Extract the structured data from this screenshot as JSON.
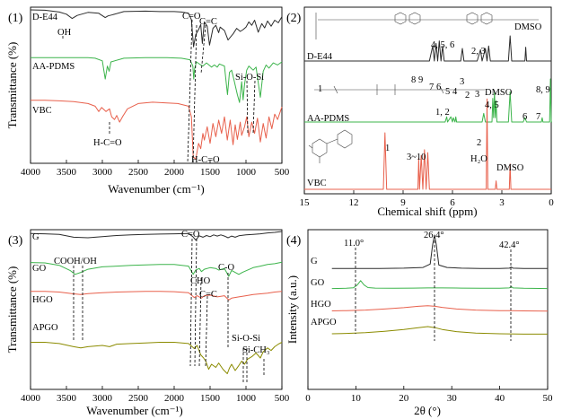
{
  "chart_data": [
    {
      "panel": "(1)",
      "type": "line",
      "xlabel": "Wavenumber (cm⁻¹)",
      "ylabel": "Transmittance (%)",
      "xlim": [
        4000,
        500
      ],
      "xticks": [
        4000,
        3500,
        3000,
        2500,
        2000,
        1500,
        1000,
        500
      ],
      "series": [
        {
          "name": "D-E44",
          "color": "#2b2b2b",
          "x": [
            4000,
            3800,
            3600,
            3500,
            3420,
            3350,
            3200,
            3050,
            2960,
            2920,
            2870,
            2700,
            2400,
            2200,
            2000,
            1900,
            1800,
            1760,
            1730,
            1700,
            1660,
            1630,
            1607,
            1580,
            1540,
            1508,
            1460,
            1420,
            1380,
            1360,
            1300,
            1250,
            1180,
            1130,
            1080,
            1040,
            1000,
            960,
            920,
            880,
            830,
            780,
            740,
            700,
            650,
            600,
            550,
            500
          ],
          "y": [
            0.98,
            0.97,
            0.93,
            0.88,
            0.78,
            0.85,
            0.92,
            0.9,
            0.8,
            0.84,
            0.86,
            0.94,
            0.95,
            0.94,
            0.94,
            0.93,
            0.9,
            0.75,
            0.12,
            0.4,
            0.52,
            0.64,
            0.2,
            0.7,
            0.6,
            0.16,
            0.55,
            0.62,
            0.45,
            0.58,
            0.5,
            0.28,
            0.42,
            0.55,
            0.48,
            0.52,
            0.58,
            0.7,
            0.62,
            0.74,
            0.46,
            0.66,
            0.56,
            0.72,
            0.6,
            0.74,
            0.68,
            0.82
          ]
        },
        {
          "name": "AA-PDMS",
          "color": "#3cb44b",
          "x": [
            4000,
            3600,
            3200,
            3100,
            3000,
            2960,
            2930,
            2905,
            2880,
            2700,
            2400,
            2100,
            1900,
            1780,
            1740,
            1727,
            1715,
            1690,
            1630,
            1600,
            1550,
            1480,
            1440,
            1400,
            1370,
            1300,
            1258,
            1230,
            1200,
            1170,
            1120,
            1090,
            1060,
            1040,
            1020,
            990,
            960,
            900,
            860,
            800,
            760,
            720,
            680,
            620,
            560,
            500
          ],
          "y": [
            0.96,
            0.96,
            0.96,
            0.95,
            0.9,
            0.55,
            0.8,
            0.7,
            0.88,
            0.95,
            0.96,
            0.96,
            0.95,
            0.92,
            0.8,
            0.55,
            0.75,
            0.88,
            0.82,
            0.8,
            0.86,
            0.78,
            0.82,
            0.78,
            0.84,
            0.8,
            0.25,
            0.68,
            0.72,
            0.55,
            0.25,
            0.1,
            0.5,
            0.15,
            0.45,
            0.72,
            0.8,
            0.72,
            0.78,
            0.2,
            0.7,
            0.82,
            0.76,
            0.86,
            0.82,
            0.88
          ]
        },
        {
          "name": "VBC",
          "color": "#e8604c",
          "x": [
            4000,
            3800,
            3600,
            3400,
            3200,
            3100,
            3050,
            3010,
            2950,
            2900,
            2870,
            2830,
            2800,
            2760,
            2720,
            2650,
            2500,
            2300,
            2100,
            1950,
            1800,
            1760,
            1735,
            1700,
            1660,
            1630,
            1600,
            1580,
            1540,
            1500,
            1460,
            1420,
            1380,
            1340,
            1300,
            1260,
            1220,
            1180,
            1150,
            1120,
            1080,
            1060,
            1020,
            990,
            960,
            920,
            880,
            840,
            800,
            760,
            720,
            680,
            640,
            600,
            560,
            500
          ],
          "y": [
            0.95,
            0.95,
            0.94,
            0.93,
            0.9,
            0.86,
            0.78,
            0.84,
            0.78,
            0.82,
            0.7,
            0.66,
            0.72,
            0.62,
            0.7,
            0.82,
            0.9,
            0.92,
            0.91,
            0.9,
            0.86,
            0.7,
            0.1,
            0.06,
            0.3,
            0.22,
            0.45,
            0.35,
            0.55,
            0.3,
            0.6,
            0.4,
            0.65,
            0.45,
            0.7,
            0.35,
            0.65,
            0.28,
            0.58,
            0.36,
            0.62,
            0.42,
            0.55,
            0.7,
            0.4,
            0.62,
            0.45,
            0.68,
            0.32,
            0.6,
            0.38,
            0.7,
            0.52,
            0.74,
            0.66,
            0.85
          ]
        }
      ],
      "annotations": [
        "OH",
        "C=O",
        "C=C",
        "Si-O-Si",
        "H-C=O",
        "H-C=O"
      ]
    },
    {
      "panel": "(2)",
      "type": "line",
      "xlabel": "Chemical shift (ppm)",
      "xlim": [
        15,
        0
      ],
      "xticks": [
        15,
        12,
        9,
        6,
        3,
        0
      ],
      "series": [
        {
          "name": "D-E44",
          "color": "#2b2b2b",
          "x": [
            15,
            7.4,
            7.2,
            7.1,
            7.0,
            6.9,
            6.8,
            6.7,
            6.6,
            6.5,
            5.5,
            5.4,
            5.3,
            4.5,
            4.3,
            4.2,
            4.0,
            3.9,
            3.8,
            3.7,
            3.6,
            2.6,
            2.5,
            2.4,
            1.6,
            1.55,
            1.5,
            0
          ],
          "y": [
            0,
            0,
            0.6,
            0,
            0.7,
            0,
            0.8,
            0,
            0.6,
            0,
            0,
            0.5,
            0,
            0,
            0.45,
            0,
            0.5,
            0,
            0.6,
            0,
            0,
            0,
            1.0,
            0,
            0,
            0.55,
            0,
            0
          ]
        },
        {
          "name": "AA-PDMS",
          "color": "#3cb44b",
          "x": [
            15,
            6.45,
            6.35,
            6.3,
            6.1,
            6.0,
            5.95,
            5.85,
            5.8,
            5.75,
            4.2,
            4.1,
            4.0,
            3.95,
            3.6,
            3.55,
            3.5,
            3.45,
            3.4,
            3.35,
            3.3,
            2.6,
            2.5,
            2.4,
            1.7,
            1.6,
            1.5,
            0.6,
            0.55,
            0.5,
            0.1,
            0.05,
            0,
            -0.05
          ],
          "y": [
            0,
            0,
            0.12,
            0,
            0.12,
            0,
            0.1,
            0,
            0.12,
            0,
            0,
            0.2,
            0,
            0,
            0,
            0.55,
            0.1,
            0.7,
            0.1,
            0.5,
            0,
            0,
            0.7,
            0,
            0,
            0.1,
            0,
            0,
            0.1,
            0,
            0,
            1.0,
            0,
            0
          ]
        },
        {
          "name": "VBC",
          "color": "#e8604c",
          "x": [
            15,
            10.2,
            10.1,
            10.0,
            8.1,
            8.05,
            8.0,
            7.9,
            7.8,
            7.7,
            7.6,
            7.5,
            7.4,
            7.3,
            3.95,
            3.9,
            3.85,
            3.4,
            3.35,
            3.3,
            2.55,
            2.5,
            2.45,
            0
          ],
          "y": [
            0,
            0,
            1.0,
            0,
            0,
            0.55,
            0,
            0.6,
            0,
            0.7,
            0,
            0.65,
            0,
            0,
            0,
            1.6,
            0,
            0,
            0.15,
            0,
            0,
            0.45,
            0,
            0
          ]
        }
      ],
      "annotations": [
        "DMSO",
        "DMSO",
        "DMSO",
        "H₂O",
        "4, 5, 6",
        "2, 3",
        "1, 2",
        "3",
        "4, 5",
        "6",
        "7",
        "8, 9",
        "2",
        "3~10",
        "1",
        "9",
        "8",
        "7",
        "6",
        "5",
        "4",
        "3",
        "2",
        "1"
      ]
    },
    {
      "panel": "(3)",
      "type": "line",
      "xlabel": "Wavenumber (cm⁻¹)",
      "ylabel": "Transmittance (%)",
      "xlim": [
        4000,
        500
      ],
      "xticks": [
        4000,
        3500,
        3000,
        2500,
        2000,
        1500,
        1000,
        500
      ],
      "series": [
        {
          "name": "G",
          "color": "#2b2b2b",
          "x": [
            4000,
            3800,
            3600,
            3400,
            3200,
            3000,
            2800,
            2600,
            2400,
            2200,
            2000,
            1800,
            1740,
            1700,
            1650,
            1600,
            1550,
            1500,
            1450,
            1400,
            1350,
            1300,
            1250,
            1200,
            1150,
            1100,
            1000,
            900,
            800,
            700,
            600,
            500
          ],
          "y": [
            0.93,
            0.92,
            0.9,
            0.8,
            0.78,
            0.82,
            0.86,
            0.88,
            0.9,
            0.91,
            0.92,
            0.93,
            0.82,
            0.7,
            0.85,
            0.8,
            0.86,
            0.82,
            0.88,
            0.84,
            0.88,
            0.84,
            0.78,
            0.84,
            0.8,
            0.85,
            0.88,
            0.9,
            0.92,
            0.95,
            0.97,
            1.0
          ]
        },
        {
          "name": "GO",
          "color": "#3cb44b",
          "x": [
            4000,
            3800,
            3600,
            3450,
            3380,
            3300,
            3200,
            3000,
            2800,
            2600,
            2400,
            2200,
            2000,
            1800,
            1735,
            1700,
            1650,
            1620,
            1580,
            1500,
            1420,
            1380,
            1300,
            1240,
            1200,
            1100,
            1050,
            1000,
            900,
            800,
            700,
            600,
            500
          ],
          "y": [
            0.85,
            0.84,
            0.78,
            0.65,
            0.55,
            0.6,
            0.68,
            0.74,
            0.76,
            0.78,
            0.79,
            0.8,
            0.8,
            0.76,
            0.55,
            0.66,
            0.7,
            0.62,
            0.68,
            0.72,
            0.7,
            0.66,
            0.7,
            0.5,
            0.65,
            0.55,
            0.6,
            0.64,
            0.72,
            0.76,
            0.8,
            0.82,
            0.86
          ]
        },
        {
          "name": "HGO",
          "color": "#e8604c",
          "x": [
            4000,
            3800,
            3600,
            3400,
            3300,
            3200,
            3000,
            2800,
            2600,
            2400,
            2200,
            2000,
            1800,
            1720,
            1680,
            1620,
            1580,
            1500,
            1400,
            1300,
            1240,
            1200,
            1100,
            1000,
            900,
            800,
            700,
            600,
            500
          ],
          "y": [
            0.8,
            0.8,
            0.78,
            0.72,
            0.7,
            0.73,
            0.76,
            0.78,
            0.79,
            0.8,
            0.8,
            0.79,
            0.76,
            0.6,
            0.66,
            0.58,
            0.66,
            0.68,
            0.62,
            0.66,
            0.52,
            0.58,
            0.62,
            0.66,
            0.7,
            0.72,
            0.74,
            0.78,
            0.8
          ]
        },
        {
          "name": "APGO",
          "color": "#8b8b00",
          "x": [
            4000,
            3800,
            3600,
            3400,
            3300,
            3200,
            3000,
            2900,
            2800,
            2600,
            2400,
            2200,
            2000,
            1800,
            1720,
            1680,
            1630,
            1590,
            1560,
            1520,
            1480,
            1420,
            1380,
            1320,
            1260,
            1230,
            1200,
            1150,
            1100,
            1060,
            1020,
            980,
            920,
            860,
            800,
            760,
            700,
            650,
            600,
            550,
            500
          ],
          "y": [
            0.55,
            0.55,
            0.53,
            0.48,
            0.46,
            0.48,
            0.5,
            0.48,
            0.52,
            0.53,
            0.54,
            0.55,
            0.55,
            0.53,
            0.45,
            0.5,
            0.35,
            0.3,
            0.25,
            0.12,
            0.2,
            0.15,
            0.22,
            0.12,
            0.05,
            0.14,
            0.2,
            0.1,
            0.18,
            0.25,
            0.2,
            0.28,
            0.32,
            0.38,
            0.3,
            0.4,
            0.46,
            0.42,
            0.48,
            0.52,
            0.55
          ]
        }
      ],
      "annotations": [
        "COOH/OH",
        "C=O",
        "CHO",
        "C=C",
        "C-O",
        "Si-O-Si",
        "Si-CH₃"
      ]
    },
    {
      "panel": "(4)",
      "type": "line",
      "xlabel": "2θ (°)",
      "ylabel": "Intensity (a.u.)",
      "xlim": [
        0,
        50
      ],
      "xticks": [
        0,
        10,
        20,
        30,
        40,
        50
      ],
      "series": [
        {
          "name": "G",
          "color": "#2b2b2b",
          "x": [
            5,
            10,
            15,
            20,
            24,
            25.5,
            26,
            26.4,
            26.8,
            27.3,
            29,
            32,
            36,
            40,
            42,
            42.4,
            42.8,
            45,
            50
          ],
          "y": [
            0.02,
            0.02,
            0.02,
            0.03,
            0.05,
            0.15,
            0.7,
            1.0,
            0.7,
            0.12,
            0.05,
            0.03,
            0.02,
            0.02,
            0.03,
            0.06,
            0.03,
            0.02,
            0.02
          ]
        },
        {
          "name": "GO",
          "color": "#3cb44b",
          "x": [
            5,
            8,
            9.5,
            10.3,
            11,
            11.7,
            12.5,
            14,
            18,
            22,
            25,
            28,
            32,
            36,
            40,
            42,
            42.4,
            42.8,
            45,
            50
          ],
          "y": [
            0.02,
            0.03,
            0.06,
            0.2,
            0.42,
            0.2,
            0.07,
            0.04,
            0.03,
            0.04,
            0.05,
            0.05,
            0.04,
            0.03,
            0.03,
            0.05,
            0.12,
            0.05,
            0.03,
            0.02
          ]
        },
        {
          "name": "HGO",
          "color": "#e8604c",
          "x": [
            5,
            8,
            12,
            16,
            20,
            23,
            25,
            26.5,
            28,
            31,
            35,
            40,
            42.4,
            45,
            50
          ],
          "y": [
            0.05,
            0.06,
            0.08,
            0.12,
            0.17,
            0.22,
            0.24,
            0.22,
            0.18,
            0.12,
            0.08,
            0.06,
            0.06,
            0.05,
            0.04
          ]
        },
        {
          "name": "APGO",
          "color": "#8b8b00",
          "x": [
            5,
            8,
            12,
            16,
            20,
            23,
            25,
            26.5,
            28,
            31,
            35,
            40,
            45,
            50
          ],
          "y": [
            0.05,
            0.06,
            0.08,
            0.12,
            0.17,
            0.22,
            0.25,
            0.22,
            0.17,
            0.11,
            0.07,
            0.05,
            0.04,
            0.04
          ]
        }
      ],
      "annotations": [
        "11.0°",
        "26.4°",
        "42.4°"
      ]
    }
  ]
}
